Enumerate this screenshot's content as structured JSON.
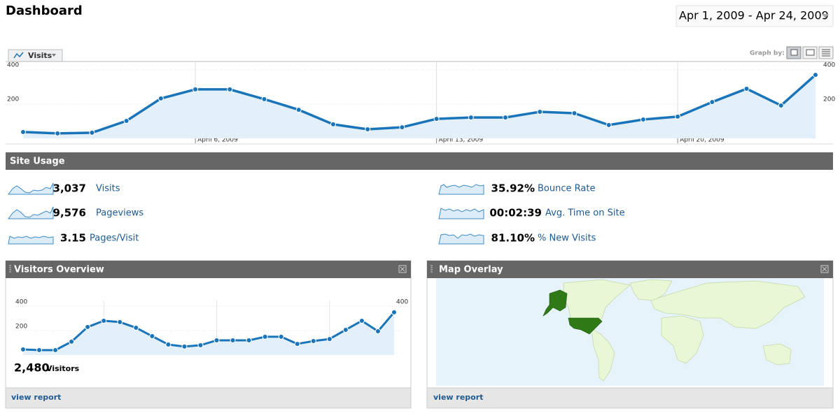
{
  "header": {
    "title": "Dashboard",
    "date_range": "Apr 1, 2009 - Apr 24, 2009"
  },
  "graph_controls": {
    "graph_by": "Graph by:"
  },
  "chart_data": [
    {
      "type": "area",
      "categories": [
        null,
        null,
        null,
        null,
        null,
        "April 6, 2009",
        null,
        null,
        null,
        null,
        null,
        null,
        "April 13, 2009",
        null,
        null,
        null,
        null,
        null,
        null,
        "April 20, 2009",
        null,
        null,
        null,
        null
      ],
      "series": [
        {
          "name": "Visits",
          "color": "#1a74ba",
          "values": [
            37,
            29,
            33,
            102,
            233,
            286,
            286,
            229,
            167,
            82,
            53,
            65,
            114,
            122,
            122,
            155,
            147,
            78,
            110,
            127,
            212,
            290,
            192,
            371
          ]
        }
      ],
      "ylim": [
        0,
        450
      ],
      "yticks": [
        200,
        400
      ],
      "grid": true
    },
    {
      "type": "area",
      "series": [
        {
          "name": "Visitors",
          "color": "#1a74ba",
          "values": [
            46,
            40,
            40,
            109,
            229,
            280,
            269,
            223,
            154,
            86,
            69,
            80,
            120,
            120,
            120,
            149,
            149,
            91,
            114,
            131,
            206,
            280,
            194,
            349
          ]
        }
      ],
      "total": "2,480",
      "ylim": [
        0,
        450
      ],
      "yticks": [
        200,
        400
      ],
      "grid": true
    }
  ],
  "site_usage": {
    "title": "Site Usage",
    "metrics": [
      {
        "value": "3,037",
        "label": "Visits"
      },
      {
        "value": "9,576",
        "label": "Pageviews"
      },
      {
        "value": "3.15",
        "label": "Pages/Visit"
      },
      {
        "value": "35.92%",
        "label": "Bounce Rate"
      },
      {
        "value": "00:02:39",
        "label": "Avg. Time on Site"
      },
      {
        "value": "81.10%",
        "label": "% New Visits"
      }
    ]
  },
  "visitors_overview": {
    "title": "Visitors Overview",
    "link": "view report"
  },
  "map_overlay": {
    "title": "Map Overlay",
    "link": "view report"
  }
}
